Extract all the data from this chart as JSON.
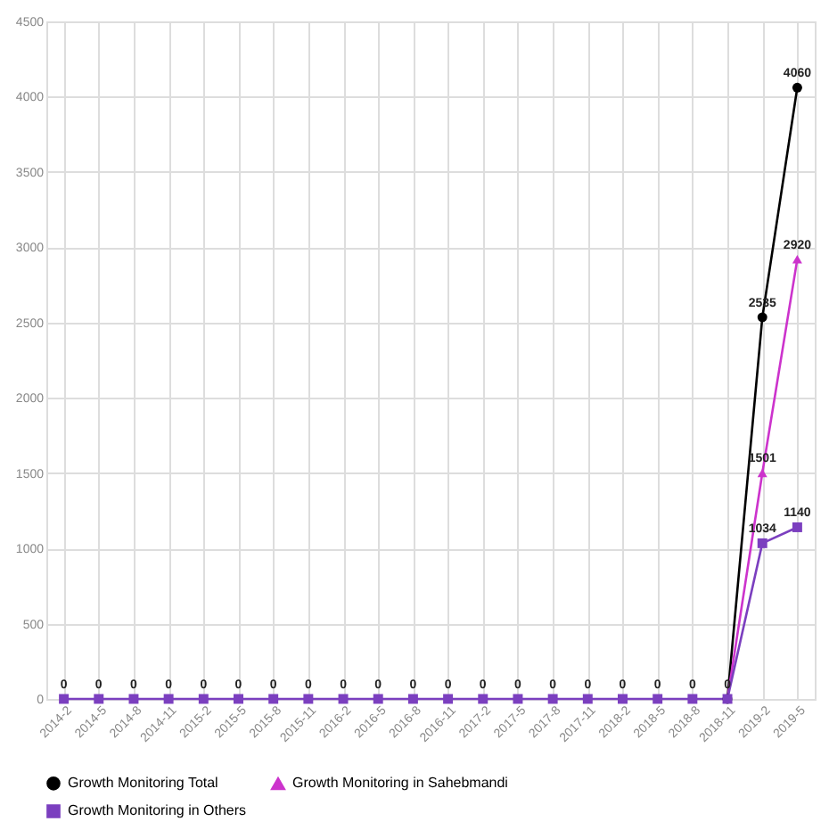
{
  "chart_data": {
    "type": "line",
    "categories": [
      "2014-2",
      "2014-5",
      "2014-8",
      "2014-11",
      "2015-2",
      "2015-5",
      "2015-8",
      "2015-11",
      "2016-2",
      "2016-5",
      "2016-8",
      "2016-11",
      "2017-2",
      "2017-5",
      "2017-8",
      "2017-11",
      "2018-2",
      "2018-5",
      "2018-8",
      "2018-11",
      "2019-2",
      "2019-5"
    ],
    "series": [
      {
        "name": "Growth Monitoring Total",
        "color": "#000000",
        "marker": "circle",
        "values": [
          null,
          null,
          null,
          null,
          null,
          null,
          null,
          null,
          null,
          null,
          null,
          null,
          null,
          null,
          null,
          null,
          null,
          null,
          null,
          0,
          2535,
          4060
        ],
        "value_labels": [
          null,
          null,
          null,
          null,
          null,
          null,
          null,
          null,
          null,
          null,
          null,
          null,
          null,
          null,
          null,
          null,
          null,
          null,
          null,
          null,
          "2535",
          "4060"
        ]
      },
      {
        "name": "Growth Monitoring in Sahebmandi",
        "color": "#cc33cc",
        "marker": "triangle",
        "values": [
          null,
          null,
          null,
          null,
          null,
          null,
          null,
          null,
          null,
          null,
          null,
          null,
          null,
          null,
          null,
          null,
          null,
          null,
          null,
          0,
          1501,
          2920
        ],
        "value_labels": [
          null,
          null,
          null,
          null,
          null,
          null,
          null,
          null,
          null,
          null,
          null,
          null,
          null,
          null,
          null,
          null,
          null,
          null,
          null,
          null,
          "1501",
          "2920"
        ]
      },
      {
        "name": "Growth Monitoring in Others",
        "color": "#7b3fbf",
        "marker": "square",
        "values": [
          0,
          0,
          0,
          0,
          0,
          0,
          0,
          0,
          0,
          0,
          0,
          0,
          0,
          0,
          0,
          0,
          0,
          0,
          0,
          0,
          1034,
          1140
        ],
        "value_labels": [
          "0",
          "0",
          "0",
          "0",
          "0",
          "0",
          "0",
          "0",
          "0",
          "0",
          "0",
          "0",
          "0",
          "0",
          "0",
          "0",
          "0",
          "0",
          "0",
          "0",
          "1034",
          "1140"
        ]
      }
    ],
    "ylim": [
      0,
      4500
    ],
    "yticks": [
      0,
      500,
      1000,
      1500,
      2000,
      2500,
      3000,
      3500,
      4000,
      4500
    ],
    "grid": true,
    "legend": "bottom",
    "line_style": "solid"
  }
}
